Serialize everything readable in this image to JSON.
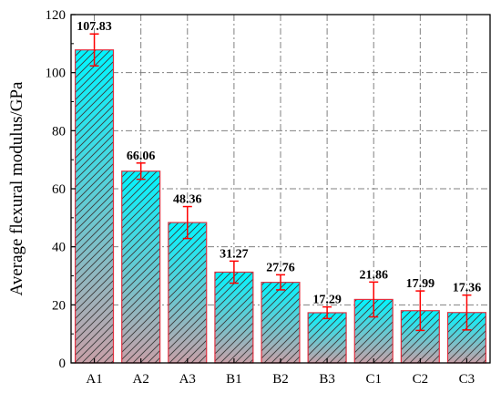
{
  "chart_data": {
    "type": "bar",
    "title": "",
    "xlabel": "",
    "ylabel": "Average flexural modulus/GPa",
    "ylim": [
      0,
      120
    ],
    "yticks": [
      0,
      20,
      40,
      60,
      80,
      100,
      120
    ],
    "grid": true,
    "legend": "none",
    "categories": [
      "A1",
      "A2",
      "A3",
      "B1",
      "B2",
      "B3",
      "C1",
      "C2",
      "C3"
    ],
    "values": [
      107.83,
      66.06,
      48.36,
      31.27,
      27.76,
      17.29,
      21.86,
      17.99,
      17.36
    ],
    "value_labels": [
      "107.83",
      "66.06",
      "48.36",
      "31.27",
      "27.76",
      "17.29",
      "21.86",
      "17.99",
      "17.36"
    ],
    "error_bars": [
      5.5,
      2.8,
      5.5,
      3.8,
      2.6,
      2.0,
      6.0,
      6.8,
      6.0
    ],
    "colors": {
      "bar_top": "#00f5ff",
      "bar_bottom": "#c8a0a8",
      "bar_edge": "#e03040",
      "hatch": "#3a3a3a",
      "error_bar": "#ff0000",
      "grid": "#808080"
    }
  }
}
